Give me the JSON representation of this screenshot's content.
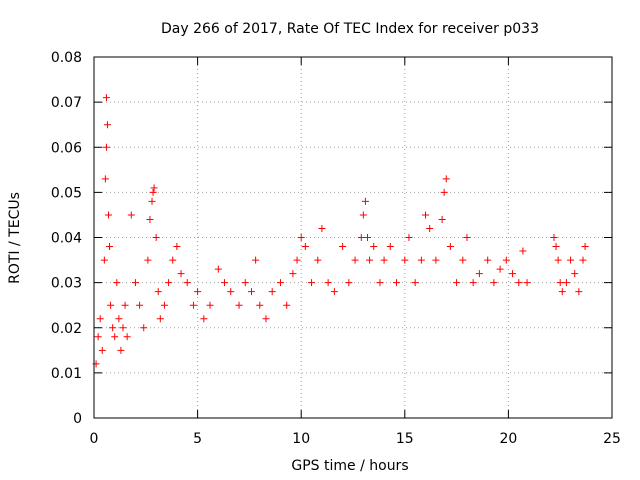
{
  "chart_data": {
    "type": "scatter",
    "title": "Day 266 of 2017, Rate Of TEC Index for receiver p033",
    "xlabel": "GPS time / hours",
    "ylabel": "ROTI / TECUs",
    "xlim": [
      0,
      25
    ],
    "ylim": [
      0,
      0.08
    ],
    "x_ticks": [
      "0",
      "5",
      "10",
      "15",
      "20",
      "25"
    ],
    "y_ticks": [
      "0",
      "0.01",
      "0.02",
      "0.03",
      "0.04",
      "0.05",
      "0.06",
      "0.07",
      "0.08"
    ],
    "grid": true,
    "marker": "+",
    "color": "#ff0000",
    "series": [
      {
        "x": [
          0.1,
          0.2,
          0.3,
          0.4,
          0.5,
          0.55,
          0.6,
          0.6,
          0.65,
          0.7,
          0.75,
          0.8,
          0.9,
          1.0,
          1.1,
          1.2,
          1.3,
          1.4,
          1.5,
          1.6,
          1.8,
          2.0,
          2.2,
          2.4,
          2.6,
          2.7,
          2.8,
          2.85,
          2.9,
          3.0,
          3.1,
          3.2,
          3.4,
          3.6,
          3.8,
          4.0,
          4.2,
          4.5,
          4.8,
          5.0,
          5.3,
          5.6,
          6.0,
          6.3,
          6.6,
          7.0,
          7.3,
          7.6,
          7.8,
          8.0,
          8.3,
          8.6,
          9.0,
          9.3,
          9.6,
          9.8,
          10.0,
          10.2,
          10.5,
          10.8,
          11.0,
          11.3,
          11.6,
          12.0,
          12.3,
          12.6,
          12.9,
          13.0,
          13.1,
          13.2,
          13.3,
          13.5,
          13.8,
          14.0,
          14.3,
          14.6,
          15.0,
          15.2,
          15.5,
          15.8,
          16.0,
          16.2,
          16.5,
          16.8,
          16.9,
          17.0,
          17.2,
          17.5,
          17.8,
          18.0,
          18.3,
          18.6,
          19.0,
          19.3,
          19.6,
          19.9,
          20.2,
          20.5,
          20.7,
          20.9,
          22.2,
          22.3,
          22.4,
          22.5,
          22.6,
          22.8,
          23.0,
          23.2,
          23.4,
          23.6,
          23.7
        ],
        "y": [
          0.012,
          0.018,
          0.022,
          0.015,
          0.035,
          0.053,
          0.06,
          0.071,
          0.065,
          0.045,
          0.038,
          0.025,
          0.02,
          0.018,
          0.03,
          0.022,
          0.015,
          0.02,
          0.025,
          0.018,
          0.045,
          0.03,
          0.025,
          0.02,
          0.035,
          0.044,
          0.048,
          0.05,
          0.051,
          0.04,
          0.028,
          0.022,
          0.025,
          0.03,
          0.035,
          0.038,
          0.032,
          0.03,
          0.025,
          0.028,
          0.022,
          0.025,
          0.033,
          0.03,
          0.028,
          0.025,
          0.03,
          0.028,
          0.035,
          0.025,
          0.022,
          0.028,
          0.03,
          0.025,
          0.032,
          0.035,
          0.04,
          0.038,
          0.03,
          0.035,
          0.042,
          0.03,
          0.028,
          0.038,
          0.03,
          0.035,
          0.04,
          0.045,
          0.048,
          0.04,
          0.035,
          0.038,
          0.03,
          0.035,
          0.038,
          0.03,
          0.035,
          0.04,
          0.03,
          0.035,
          0.045,
          0.042,
          0.035,
          0.044,
          0.05,
          0.053,
          0.038,
          0.03,
          0.035,
          0.04,
          0.03,
          0.032,
          0.035,
          0.03,
          0.033,
          0.035,
          0.032,
          0.03,
          0.037,
          0.03,
          0.04,
          0.038,
          0.035,
          0.03,
          0.028,
          0.03,
          0.035,
          0.032,
          0.028,
          0.035,
          0.038
        ]
      }
    ]
  }
}
